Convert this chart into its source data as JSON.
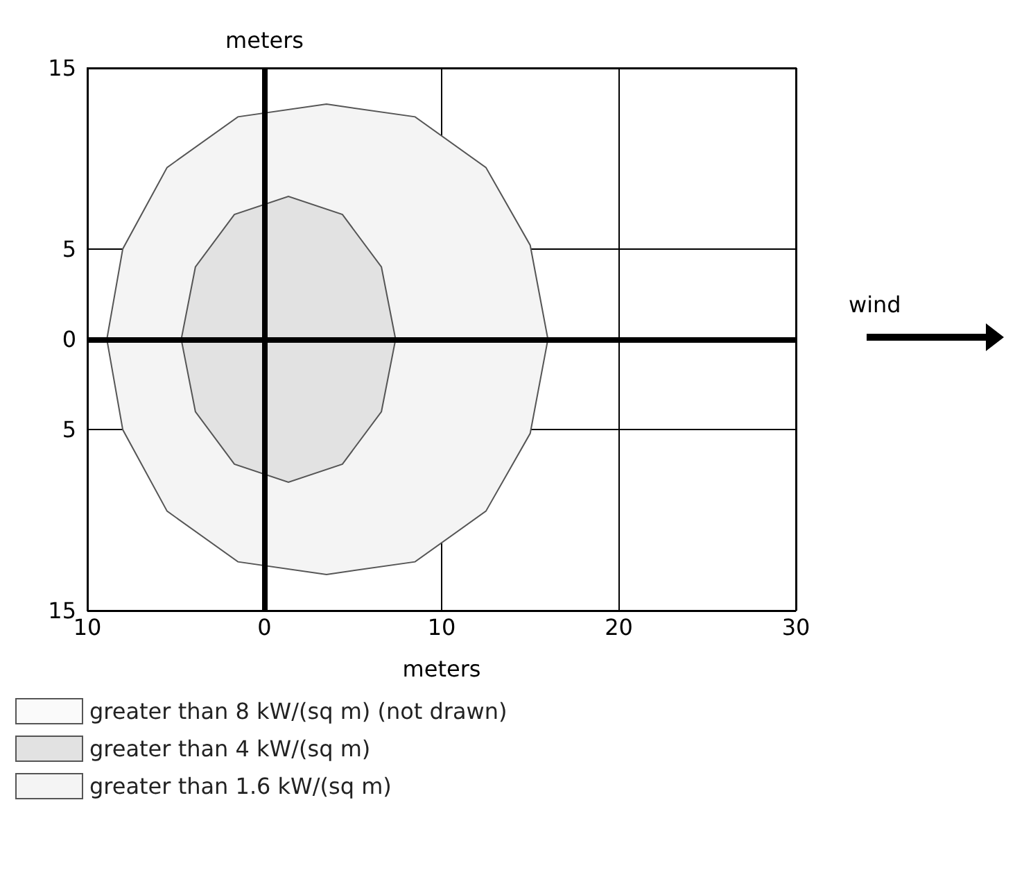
{
  "chart_data": {
    "type": "area",
    "xlabel": "meters",
    "ylabel": "meters",
    "xlim": [
      -10,
      30
    ],
    "ylim": [
      -15,
      15
    ],
    "xticks": [
      {
        "value": -10,
        "label": "10"
      },
      0,
      10,
      20,
      30
    ],
    "yticks": [
      {
        "value": -15,
        "label": "15"
      },
      {
        "value": -5,
        "label": "5"
      },
      0,
      5,
      15
    ],
    "grid": true,
    "legend": "bottom left",
    "annotations": [
      "wind"
    ],
    "series": [
      {
        "name": "greater than 8 kW/(sq m) (not drawn)",
        "color": "#fafafa"
      },
      {
        "name": "greater than 4 kW/(sq m)",
        "color": "#e2e2e2",
        "x": [
          7.4,
          6.6,
          4.4,
          1.35,
          -1.7,
          -3.9,
          -4.7,
          -3.9,
          -1.7,
          1.35,
          4.4,
          6.6,
          7.4
        ],
        "values": [
          0,
          4,
          6.9,
          7.9,
          6.9,
          4,
          0,
          -4,
          -6.9,
          -7.9,
          -6.9,
          -4,
          0
        ]
      },
      {
        "name": "greater than 1.6 kW/(sq m)",
        "color": "#f4f4f4",
        "x": [
          16,
          15,
          12.5,
          8.5,
          3.5,
          -1.5,
          -5.5,
          -8,
          -8.9,
          -8,
          -5.5,
          -1.5,
          3.5,
          8.5,
          12.5,
          15,
          16
        ],
        "values": [
          0,
          5.2,
          9.5,
          12.3,
          13,
          12.3,
          9.5,
          5,
          0,
          -5,
          -9.5,
          -12.3,
          -13,
          -12.3,
          -9.5,
          -5.2,
          0
        ]
      }
    ]
  }
}
